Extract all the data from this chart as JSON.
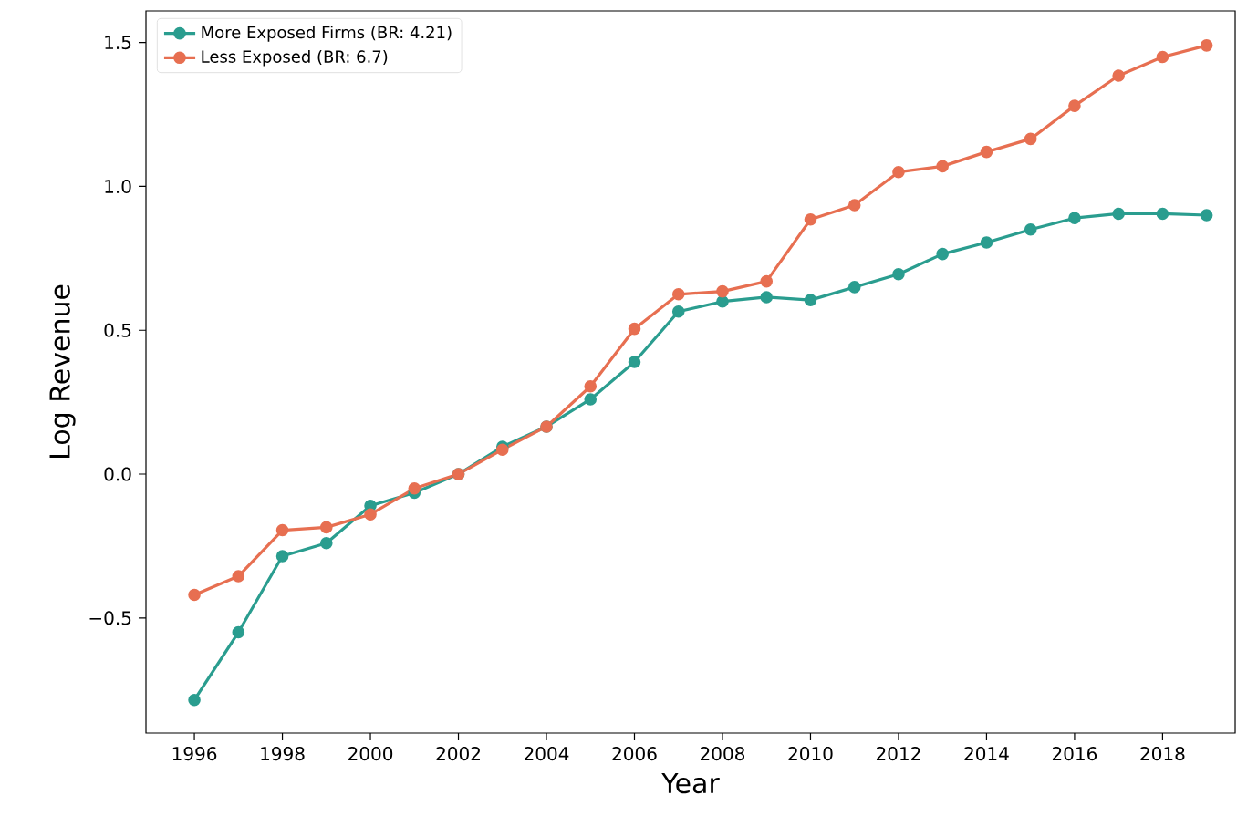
{
  "chart_data": {
    "type": "line",
    "xlabel": "Year",
    "ylabel": "Log Revenue",
    "x": [
      1996,
      1997,
      1998,
      1999,
      2000,
      2001,
      2002,
      2003,
      2004,
      2005,
      2006,
      2007,
      2008,
      2009,
      2010,
      2011,
      2012,
      2013,
      2014,
      2015,
      2016,
      2017,
      2018,
      2019
    ],
    "series": [
      {
        "name": "More Exposed Firms (BR: 4.21)",
        "color": "#2a9d8f",
        "values": [
          -0.785,
          -0.55,
          -0.285,
          -0.24,
          -0.11,
          -0.065,
          0.0,
          0.095,
          0.165,
          0.26,
          0.39,
          0.565,
          0.6,
          0.615,
          0.605,
          0.65,
          0.695,
          0.765,
          0.805,
          0.85,
          0.89,
          0.905,
          0.905,
          0.9
        ]
      },
      {
        "name": "Less Exposed (BR: 6.7)",
        "color": "#e76f51",
        "values": [
          -0.42,
          -0.355,
          -0.195,
          -0.185,
          -0.14,
          -0.05,
          0.0,
          0.085,
          0.165,
          0.305,
          0.505,
          0.625,
          0.635,
          0.67,
          0.885,
          0.935,
          1.05,
          1.07,
          1.12,
          1.165,
          1.28,
          1.385,
          1.45,
          1.49
        ]
      }
    ],
    "xlim": [
      1994.9,
      2019.65
    ],
    "ylim": [
      -0.9,
      1.61
    ],
    "xticks": [
      1996,
      1998,
      2000,
      2002,
      2004,
      2006,
      2008,
      2010,
      2012,
      2014,
      2016,
      2018
    ],
    "yticks": [
      {
        "value": -0.5,
        "label": "−0.5"
      },
      {
        "value": 0.0,
        "label": "0.0"
      },
      {
        "value": 0.5,
        "label": "0.5"
      },
      {
        "value": 1.0,
        "label": "1.0"
      },
      {
        "value": 1.5,
        "label": "1.5"
      }
    ],
    "legend": "top left",
    "marker": "circle",
    "line_style": "solid",
    "grid": false
  }
}
